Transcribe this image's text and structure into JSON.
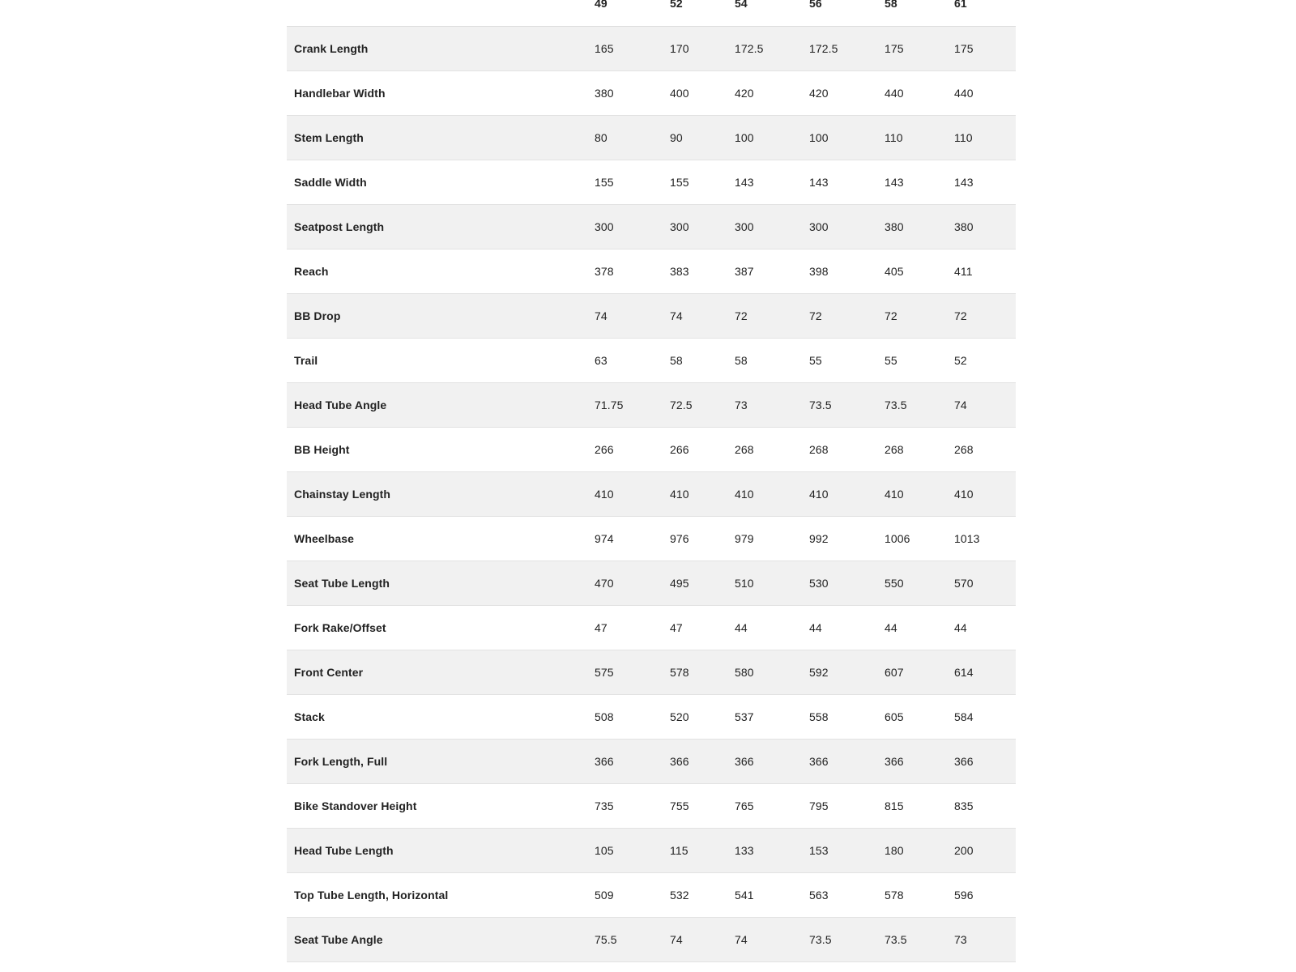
{
  "table": {
    "sizes": [
      "49",
      "52",
      "54",
      "56",
      "58",
      "61"
    ],
    "rows": [
      {
        "label": "Crank Length",
        "values": [
          "165",
          "170",
          "172.5",
          "172.5",
          "175",
          "175"
        ]
      },
      {
        "label": "Handlebar Width",
        "values": [
          "380",
          "400",
          "420",
          "420",
          "440",
          "440"
        ]
      },
      {
        "label": "Stem Length",
        "values": [
          "80",
          "90",
          "100",
          "100",
          "110",
          "110"
        ]
      },
      {
        "label": "Saddle Width",
        "values": [
          "155",
          "155",
          "143",
          "143",
          "143",
          "143"
        ]
      },
      {
        "label": "Seatpost Length",
        "values": [
          "300",
          "300",
          "300",
          "300",
          "380",
          "380"
        ]
      },
      {
        "label": "Reach",
        "values": [
          "378",
          "383",
          "387",
          "398",
          "405",
          "411"
        ]
      },
      {
        "label": "BB Drop",
        "values": [
          "74",
          "74",
          "72",
          "72",
          "72",
          "72"
        ]
      },
      {
        "label": "Trail",
        "values": [
          "63",
          "58",
          "58",
          "55",
          "55",
          "52"
        ]
      },
      {
        "label": "Head Tube Angle",
        "values": [
          "71.75",
          "72.5",
          "73",
          "73.5",
          "73.5",
          "74"
        ]
      },
      {
        "label": "BB Height",
        "values": [
          "266",
          "266",
          "268",
          "268",
          "268",
          "268"
        ]
      },
      {
        "label": "Chainstay Length",
        "values": [
          "410",
          "410",
          "410",
          "410",
          "410",
          "410"
        ]
      },
      {
        "label": "Wheelbase",
        "values": [
          "974",
          "976",
          "979",
          "992",
          "1006",
          "1013"
        ]
      },
      {
        "label": "Seat Tube Length",
        "values": [
          "470",
          "495",
          "510",
          "530",
          "550",
          "570"
        ]
      },
      {
        "label": "Fork Rake/Offset",
        "values": [
          "47",
          "47",
          "44",
          "44",
          "44",
          "44"
        ]
      },
      {
        "label": "Front Center",
        "values": [
          "575",
          "578",
          "580",
          "592",
          "607",
          "614"
        ]
      },
      {
        "label": "Stack",
        "values": [
          "508",
          "520",
          "537",
          "558",
          "605",
          "584"
        ]
      },
      {
        "label": "Fork Length, Full",
        "values": [
          "366",
          "366",
          "366",
          "366",
          "366",
          "366"
        ]
      },
      {
        "label": "Bike Standover Height",
        "values": [
          "735",
          "755",
          "765",
          "795",
          "815",
          "835"
        ]
      },
      {
        "label": "Head Tube Length",
        "values": [
          "105",
          "115",
          "133",
          "153",
          "180",
          "200"
        ]
      },
      {
        "label": "Top Tube Length, Horizontal",
        "values": [
          "509",
          "532",
          "541",
          "563",
          "578",
          "596"
        ]
      },
      {
        "label": "Seat Tube Angle",
        "values": [
          "75.5",
          "74",
          "74",
          "73.5",
          "73.5",
          "73"
        ]
      }
    ]
  },
  "colors": {
    "row_alt": "#f1f1f1",
    "text": "#222222",
    "border": "#e2e2e2"
  }
}
